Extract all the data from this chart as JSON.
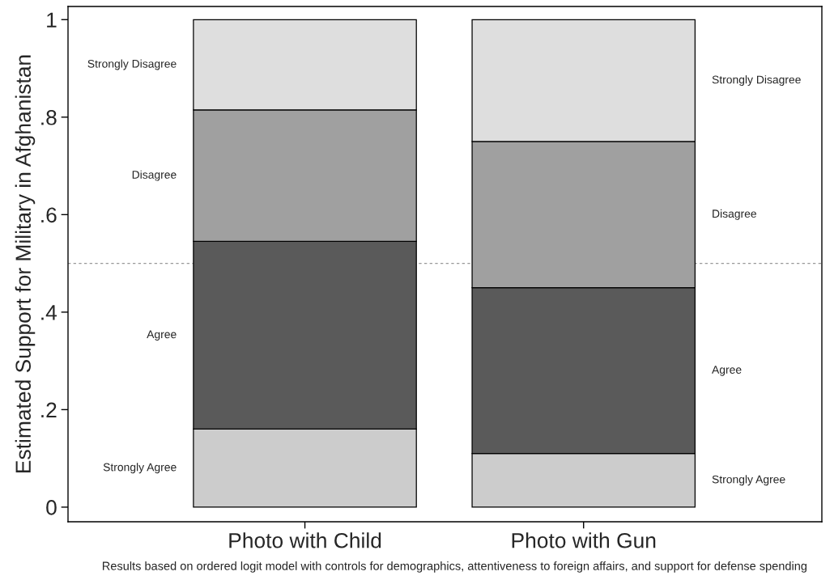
{
  "chart_data": {
    "type": "bar",
    "stacked": true,
    "categories": [
      "Photo with Child",
      "Photo with Gun"
    ],
    "series": [
      {
        "name": "Strongly Agree",
        "color": "#cccccc",
        "values": [
          0.16,
          0.11
        ]
      },
      {
        "name": "Agree",
        "color": "#5a5a5a",
        "values": [
          0.385,
          0.34
        ]
      },
      {
        "name": "Disagree",
        "color": "#a0a0a0",
        "values": [
          0.27,
          0.3
        ]
      },
      {
        "name": "Strongly Disagree",
        "color": "#dedede",
        "values": [
          0.185,
          0.25
        ]
      }
    ],
    "ylabel": "Estimated Support for Military in Afghanistan",
    "ylim": [
      -0.03,
      1.027
    ],
    "yticks": [
      0,
      {
        "value": 0.2,
        "label": ".2"
      },
      {
        "value": 0.4,
        "label": ".4"
      },
      {
        "value": 0.6,
        "label": ".6"
      },
      {
        "value": 0.8,
        "label": ".8"
      },
      1
    ],
    "ref_lines": [
      {
        "axis": "y",
        "value": 0.5,
        "color": "#999999",
        "line_style": "dashed"
      }
    ],
    "grid": false,
    "legend": false,
    "annotations": [
      "Results based on ordered logit model with controls for demographics, attentiveness to foreign affairs, and support for defense spending"
    ]
  }
}
